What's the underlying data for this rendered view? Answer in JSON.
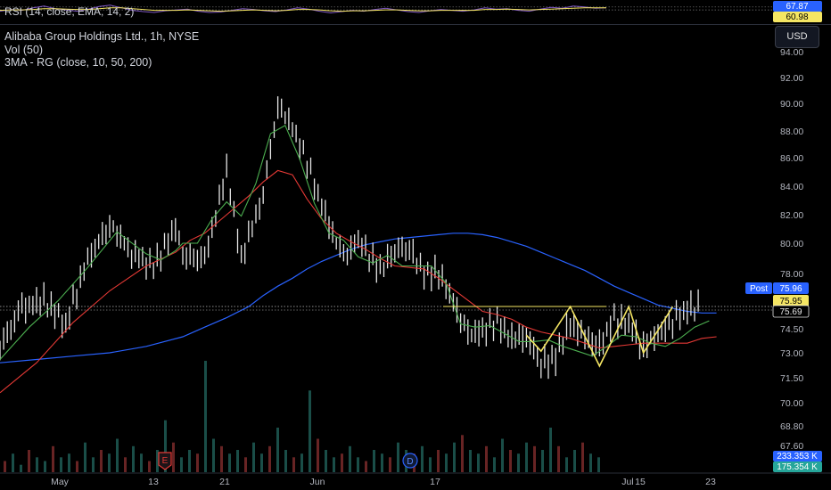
{
  "rsi_legend": "RSI (14, close, EMA, 14, 2)",
  "rsi_values": [
    "67.87",
    "60.98"
  ],
  "main_legend": {
    "symbol": "Alibaba Group Holdings Ltd., 1h, NYSE",
    "vol": "Vol (50)",
    "ma": "3MA - RG (close, 10, 50, 200)"
  },
  "currency_button": "USD",
  "price_labels": {
    "post_tag": "Post",
    "post_price": "75.96",
    "last_price": "75.95",
    "ref_price": "75.69",
    "vol_a": "233.353 K",
    "vol_b": "175.354 K"
  },
  "event_markers": [
    "E",
    "D"
  ],
  "colors": {
    "background": "#000000",
    "price_bar": "#e6e6e6",
    "ma10": "#4caf50",
    "ma50": "#e53935",
    "ma200": "#2962ff",
    "pattern": "#f5e663",
    "rsi_line": "#7e57c2",
    "rsi_ema": "#f5e663",
    "post_badge": "#2962ff",
    "last_badge": "#f5e663",
    "vol_badge_a": "#2962ff",
    "vol_badge_b": "#26a69a"
  },
  "chart_data": {
    "type": "line",
    "title": "Alibaba Group Holdings Ltd., 1h, NYSE",
    "y_axis_labels": [
      "94.00",
      "92.00",
      "90.00",
      "88.00",
      "86.00",
      "84.00",
      "82.00",
      "80.00",
      "78.00",
      "74.50",
      "73.00",
      "71.50",
      "70.00",
      "68.80",
      "67.60"
    ],
    "x_axis_labels": [
      "May",
      "13",
      "21",
      "Jun",
      "17",
      "Jul",
      "15",
      "23"
    ],
    "x_domain": [
      0,
      100
    ],
    "ylim": [
      66.0,
      95.5
    ],
    "series": [
      {
        "name": "price",
        "style": "ohlc_bars",
        "x": [
          0,
          3,
          6,
          9,
          12,
          15,
          18,
          21,
          24,
          25,
          28,
          31,
          33,
          36,
          38,
          40,
          42,
          45,
          47,
          49,
          51,
          52,
          54,
          56,
          58,
          60,
          62,
          64,
          66,
          68,
          70,
          72,
          74,
          76,
          78,
          80,
          82,
          84,
          86,
          88,
          90,
          92,
          94,
          96
        ],
        "values": [
          73.4,
          75.8,
          76.3,
          74.8,
          78.9,
          81.3,
          79.4,
          78.4,
          81.1,
          79.2,
          78.9,
          85.1,
          79.0,
          83.4,
          89.9,
          88.3,
          85.6,
          81.2,
          79.1,
          80.2,
          78.9,
          78.3,
          79.6,
          79.7,
          78.0,
          78.1,
          76.1,
          74.1,
          74.4,
          74.9,
          73.9,
          74.1,
          72.3,
          72.8,
          74.8,
          73.9,
          73.4,
          75.1,
          74.7,
          73.4,
          74.2,
          75.0,
          75.8,
          75.9
        ]
      },
      {
        "name": "MA 10",
        "x": [
          0,
          4,
          8,
          12,
          16,
          20,
          22,
          24,
          25,
          27,
          29,
          31,
          33,
          35,
          37,
          39,
          41,
          43,
          45,
          47,
          49,
          51,
          53,
          55,
          57,
          59,
          61,
          63,
          65,
          67,
          69,
          71,
          73,
          75,
          77,
          79,
          81,
          83,
          85,
          87,
          89,
          91,
          93,
          95,
          97
        ],
        "values": [
          72.6,
          74.6,
          76.3,
          78.4,
          80.8,
          79.3,
          78.9,
          79.5,
          80.0,
          80.0,
          81.7,
          82.9,
          81.9,
          84.2,
          87.8,
          88.4,
          85.9,
          82.8,
          80.7,
          80.2,
          79.1,
          78.7,
          79.2,
          78.5,
          78.5,
          78.5,
          77.4,
          74.8,
          74.6,
          74.7,
          74.2,
          73.7,
          73.7,
          73.8,
          73.4,
          73.1,
          72.8,
          73.4,
          74.1,
          74.0,
          73.6,
          73.4,
          73.9,
          74.6,
          75.0
        ]
      },
      {
        "name": "MA 50",
        "x": [
          0,
          5,
          10,
          15,
          20,
          24,
          26,
          28,
          31,
          34,
          36,
          38,
          40,
          42,
          44,
          46,
          48,
          50,
          52,
          54,
          56,
          58,
          60,
          62,
          64,
          66,
          68,
          70,
          72,
          74,
          76,
          78,
          80,
          82,
          84,
          86,
          88,
          90,
          92,
          94,
          96,
          98
        ],
        "values": [
          70.6,
          72.4,
          74.9,
          76.9,
          78.5,
          79.4,
          80.2,
          80.7,
          82.0,
          83.3,
          84.3,
          85.1,
          84.8,
          83.1,
          81.7,
          80.7,
          80.1,
          79.6,
          79.0,
          78.5,
          78.4,
          78.3,
          77.7,
          77.0,
          76.3,
          75.6,
          75.4,
          75.1,
          74.6,
          74.3,
          74.1,
          73.9,
          73.6,
          73.3,
          73.4,
          73.5,
          73.6,
          73.6,
          73.6,
          73.6,
          73.9,
          74.0
        ]
      },
      {
        "name": "MA 200",
        "x": [
          0,
          5,
          10,
          15,
          20,
          25,
          28,
          31,
          34,
          36,
          38,
          40,
          42,
          44,
          46,
          48,
          50,
          52,
          54,
          56,
          58,
          60,
          62,
          64,
          66,
          68,
          70,
          72,
          74,
          76,
          78,
          80,
          82,
          84,
          86,
          88,
          90,
          92,
          94,
          96,
          98
        ],
        "values": [
          72.4,
          72.6,
          72.8,
          73.0,
          73.4,
          74.0,
          74.6,
          75.2,
          75.9,
          76.6,
          77.2,
          77.7,
          78.3,
          78.8,
          79.2,
          79.6,
          79.9,
          80.1,
          80.3,
          80.4,
          80.5,
          80.6,
          80.7,
          80.7,
          80.6,
          80.4,
          80.1,
          79.8,
          79.4,
          79.0,
          78.6,
          78.2,
          77.7,
          77.2,
          76.8,
          76.4,
          76.0,
          75.8,
          75.6,
          75.5,
          75.5
        ]
      },
      {
        "name": "pattern",
        "x": [
          72,
          74,
          78,
          82,
          86,
          88,
          90,
          92
        ],
        "values": [
          74.1,
          73.1,
          75.9,
          72.2,
          75.9,
          73.0,
          74.4,
          75.9
        ]
      }
    ],
    "volume": [
      3,
      5,
      2,
      6,
      4,
      3,
      7,
      4,
      5,
      3,
      8,
      4,
      6,
      5,
      9,
      4,
      7,
      5,
      3,
      6,
      14,
      8,
      4,
      6,
      5,
      30,
      9,
      7,
      5,
      6,
      4,
      8,
      5,
      7,
      12,
      6,
      4,
      5,
      22,
      9,
      6,
      4,
      5,
      7,
      4,
      3,
      6,
      5,
      4,
      8,
      6,
      5,
      7,
      4,
      6,
      5,
      8,
      10,
      6,
      5,
      7,
      4,
      9,
      6,
      5,
      8,
      7,
      6,
      12,
      7,
      4,
      6,
      8,
      5,
      4
    ],
    "reference_lines": [
      75.95,
      75.69
    ],
    "rsi": {
      "ylim": [
        30,
        80
      ],
      "rsi_values": [
        58,
        62,
        60,
        66,
        70,
        64,
        61,
        58,
        63,
        69,
        72,
        66,
        60,
        57,
        55,
        59,
        61,
        63,
        58,
        55,
        56,
        60,
        64,
        62,
        59,
        57,
        61,
        66,
        63,
        58,
        54,
        57,
        60,
        58,
        62,
        65,
        61,
        57,
        55,
        59,
        62,
        60,
        58,
        61,
        66,
        63,
        64,
        60,
        58,
        63,
        67,
        65,
        70,
        68,
        65,
        66
      ],
      "ema_values": [
        60,
        61,
        61,
        62,
        64,
        64,
        63,
        62,
        62,
        64,
        66,
        66,
        64,
        62,
        60,
        60,
        60,
        61,
        60,
        59,
        58,
        59,
        60,
        61,
        60,
        59,
        60,
        62,
        62,
        61,
        59,
        58,
        59,
        59,
        60,
        61,
        61,
        60,
        59,
        59,
        60,
        60,
        60,
        60,
        62,
        62,
        63,
        62,
        61,
        62,
        63,
        64,
        65,
        66,
        66,
        66
      ],
      "levels": [
        67.87,
        60.98
      ]
    }
  }
}
